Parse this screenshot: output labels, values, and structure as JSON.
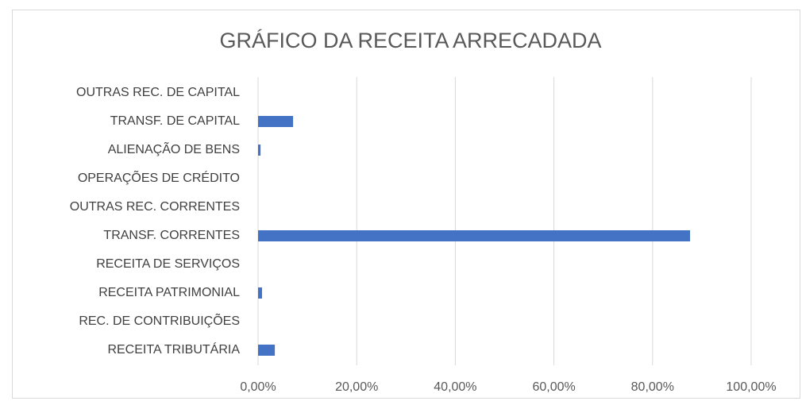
{
  "chart_data": {
    "type": "bar",
    "orientation": "horizontal",
    "title": "GRÁFICO DA RECEITA ARRECADADA",
    "categories": [
      "OUTRAS REC. DE CAPITAL",
      "TRANSF. DE CAPITAL",
      "ALIENAÇÃO DE BENS",
      "OPERAÇÕES DE CRÉDITO",
      "OUTRAS REC. CORRENTES",
      "TRANSF. CORRENTES",
      "RECEITA DE SERVIÇOS",
      "RECEITA PATRIMONIAL",
      "REC. DE CONTRIBUIÇÕES",
      "RECEITA TRIBUTÁRIA"
    ],
    "values": [
      0,
      7.1,
      0.5,
      0,
      0,
      87.6,
      0,
      0.8,
      0,
      3.4
    ],
    "color": "#4472c4",
    "xlim": [
      0,
      100
    ],
    "xticks": [
      {
        "value": 0,
        "label": "0,00%"
      },
      {
        "value": 20,
        "label": "20,00%"
      },
      {
        "value": 40,
        "label": "40,00%"
      },
      {
        "value": 60,
        "label": "60,00%"
      },
      {
        "value": 80,
        "label": "80,00%"
      },
      {
        "value": 100,
        "label": "100,00%"
      }
    ],
    "grid": true
  }
}
